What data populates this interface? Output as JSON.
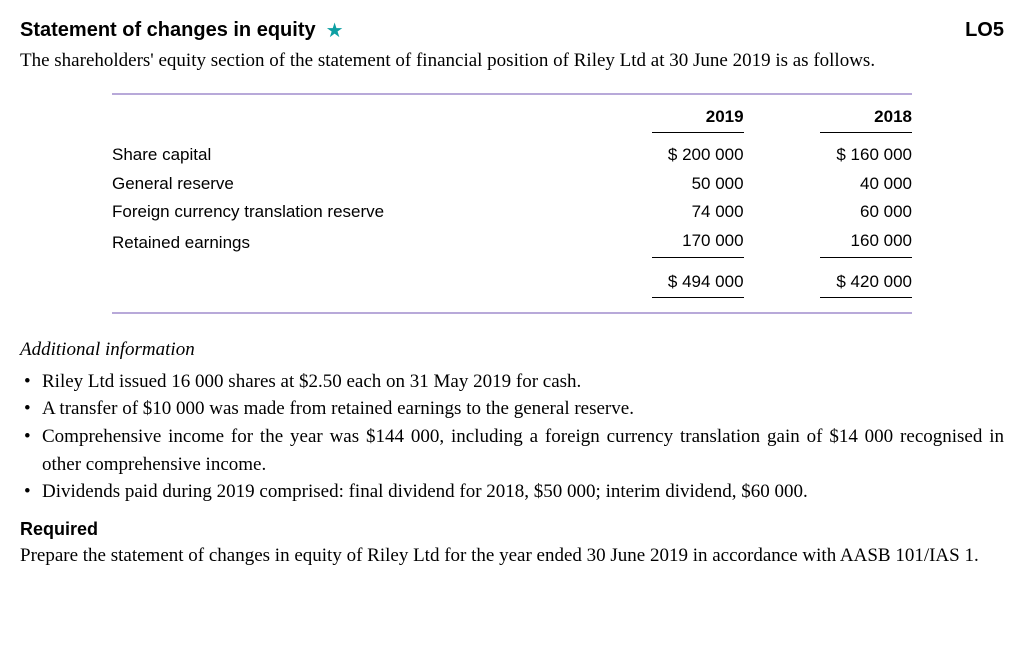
{
  "header": {
    "title": "Statement of changes in equity",
    "star_glyph": "★",
    "star_color": "#0d9fa3",
    "lo": "LO5"
  },
  "intro": "The shareholders' equity section of the statement of financial position of Riley Ltd at 30 June 2019 is as follows.",
  "table": {
    "border_color": "#b8a9d9",
    "columns": [
      "2019",
      "2018"
    ],
    "rows": [
      {
        "label": "Share capital",
        "y2019": "$ 200 000",
        "y2018": "$ 160 000"
      },
      {
        "label": "General reserve",
        "y2019": "50 000",
        "y2018": "40 000"
      },
      {
        "label": "Foreign currency translation reserve",
        "y2019": "74 000",
        "y2018": "60 000"
      },
      {
        "label": "Retained earnings",
        "y2019": "170 000",
        "y2018": "160 000"
      }
    ],
    "total": {
      "y2019": "$ 494 000",
      "y2018": "$ 420 000"
    }
  },
  "additional": {
    "heading": "Additional information",
    "items": [
      "Riley Ltd issued 16 000 shares at $2.50 each on 31 May 2019 for cash.",
      "A transfer of $10 000 was made from retained earnings to the general reserve.",
      "Comprehensive income for the year was $144 000, including a foreign currency translation gain of $14 000 recognised in other comprehensive income.",
      "Dividends paid during 2019 comprised: final dividend for 2018, $50 000; interim dividend, $60 000."
    ]
  },
  "required": {
    "heading": "Required",
    "text": "Prepare the statement of changes in equity of Riley Ltd for the year ended 30 June 2019 in accordance with AASB 101/IAS 1."
  }
}
